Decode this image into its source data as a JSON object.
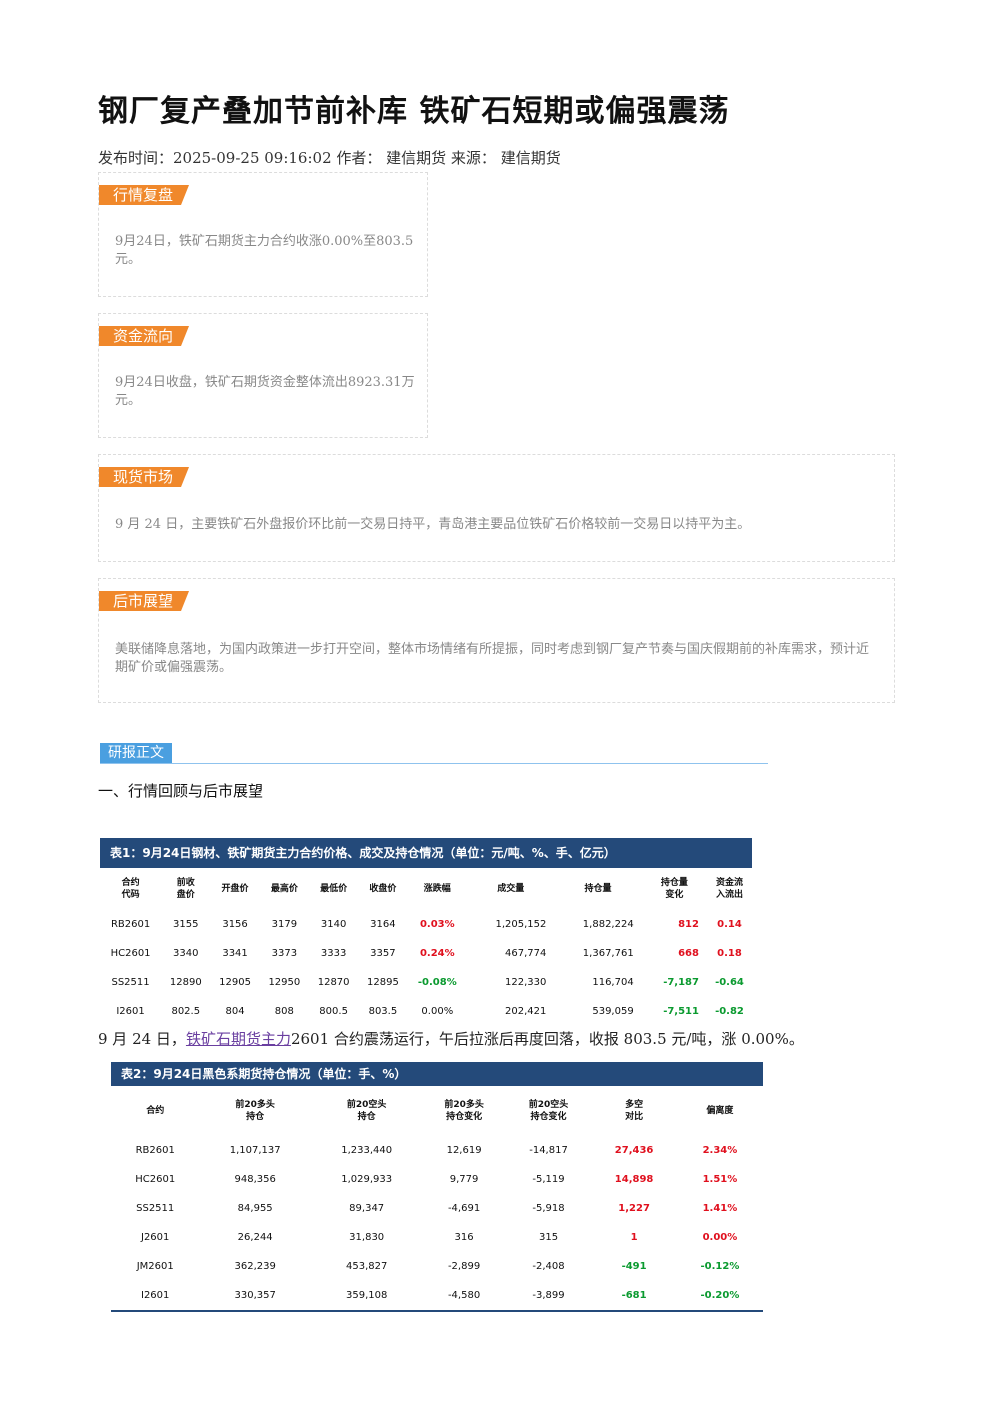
{
  "title": "钢厂复产叠加节前补库 铁矿石短期或偏强震荡",
  "meta": "发布时间：2025-09-25 09:16:02 作者：  建信期货 来源：  建信期货",
  "sections": {
    "review": {
      "tag": "行情复盘",
      "text": "9月24日，铁矿石期货主力合约收涨0.00%至803.5元。"
    },
    "funds": {
      "tag": "资金流向",
      "text": "9月24日收盘，铁矿石期货资金整体流出8923.31万元。"
    },
    "spot": {
      "tag": "现货市场",
      "text": "9 月 24 日，主要铁矿石外盘报价环比前一交易日持平，青岛港主要品位铁矿石价格较前一交易日以持平为主。"
    },
    "outlook": {
      "tag": "后市展望",
      "text": "美联储降息落地，为国内政策进一步打开空间，整体市场情绪有所提振，同时考虑到钢厂复产节奏与国庆假期前的补库需求，预计近期矿价或偏强震荡。"
    }
  },
  "report_tag": "研报正文",
  "section_heading": "一、行情回顾与后市展望",
  "table1": {
    "title": "表1：9月24日钢材、铁矿期货主力合约价格、成交及持仓情况（单位：元/吨、%、手、亿元）",
    "headers": [
      [
        "合约",
        "代码"
      ],
      [
        "前收",
        "盘价"
      ],
      [
        "开盘价"
      ],
      [
        "最高价"
      ],
      [
        "最低价"
      ],
      [
        "收盘价"
      ],
      [
        "涨跌幅"
      ],
      [
        "成交量"
      ],
      [
        "持仓量"
      ],
      [
        "持仓量",
        "变化"
      ],
      [
        "资金流",
        "入流出"
      ]
    ],
    "rows": [
      [
        "RB2601",
        "3155",
        "3156",
        "3179",
        "3140",
        "3164",
        "0.03%",
        "1,205,152",
        "1,882,224",
        "812",
        "0.14"
      ],
      [
        "HC2601",
        "3340",
        "3341",
        "3373",
        "3333",
        "3357",
        "0.24%",
        "467,774",
        "1,367,761",
        "668",
        "0.18"
      ],
      [
        "SS2511",
        "12890",
        "12905",
        "12950",
        "12870",
        "12895",
        "-0.08%",
        "122,330",
        "116,704",
        "-7,187",
        "-0.64"
      ],
      [
        "I2601",
        "802.5",
        "804",
        "808",
        "800.5",
        "803.5",
        "0.00%",
        "202,421",
        "539,059",
        "-7,511",
        "-0.82"
      ]
    ]
  },
  "note": {
    "pre": "9 月 24 日，",
    "link": "铁矿石期货主力",
    "post": "2601 合约震荡运行，午后拉涨后再度回落，收报 803.5 元/吨，涨 0.00%。"
  },
  "table2": {
    "title": "表2：9月24日黑色系期货持仓情况（单位：手、%）",
    "headers": [
      [
        "合约"
      ],
      [
        "前20多头",
        "持仓"
      ],
      [
        "前20空头",
        "持仓"
      ],
      [
        "前20多头",
        "持仓变化"
      ],
      [
        "前20空头",
        "持仓变化"
      ],
      [
        "多空",
        "对比"
      ],
      [
        "偏离度"
      ]
    ],
    "rows": [
      [
        "RB2601",
        "1,107,137",
        "1,233,440",
        "12,619",
        "-14,817",
        "27,436",
        "2.34%"
      ],
      [
        "HC2601",
        "948,356",
        "1,029,933",
        "9,779",
        "-5,119",
        "14,898",
        "1.51%"
      ],
      [
        "SS2511",
        "84,955",
        "89,347",
        "-4,691",
        "-5,918",
        "1,227",
        "1.41%"
      ],
      [
        "J2601",
        "26,244",
        "31,830",
        "316",
        "315",
        "1",
        "0.00%"
      ],
      [
        "JM2601",
        "362,239",
        "453,827",
        "-2,899",
        "-2,408",
        "-491",
        "-0.12%"
      ],
      [
        "I2601",
        "330,357",
        "359,108",
        "-4,580",
        "-3,899",
        "-681",
        "-0.20%"
      ]
    ]
  }
}
